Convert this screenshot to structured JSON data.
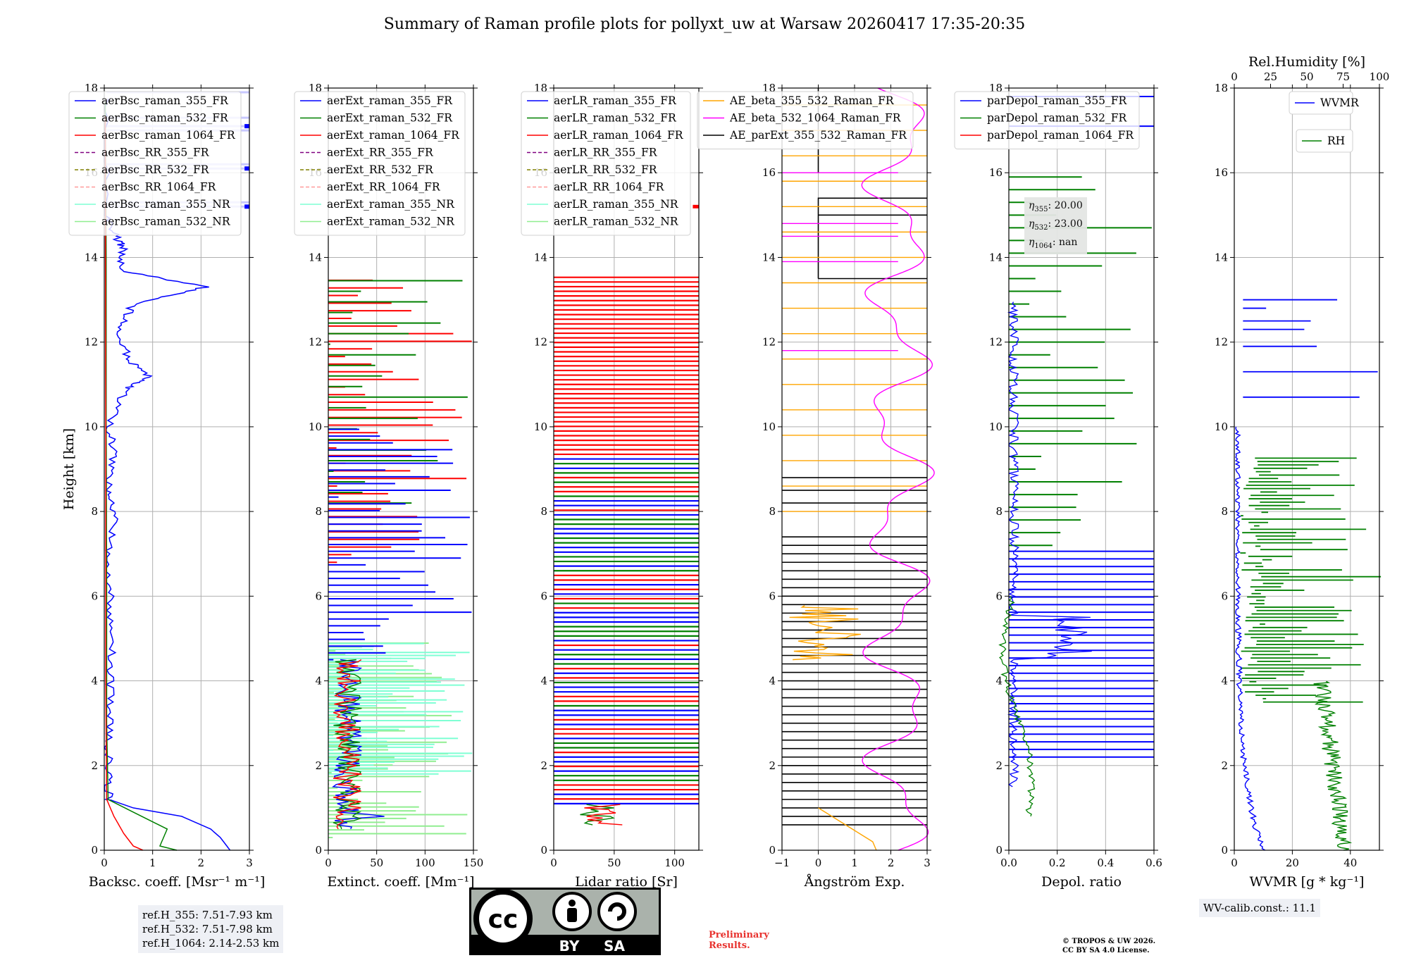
{
  "figure_title": "Summary of Raman profile plots for pollyxt_uw at Warsaw 20260417 17:35-20:35",
  "chart_data": [
    {
      "type": "line",
      "name": "backscatter",
      "xlabel": "Backsc. coeff. [Msr⁻¹ m⁻¹]",
      "ylabel": "Height [km]",
      "xlim": [
        0,
        3
      ],
      "ylim": [
        0,
        18
      ],
      "xticks": [
        "0",
        "1",
        "2",
        "3"
      ],
      "yticks": [
        "0",
        "2",
        "4",
        "6",
        "8",
        "10",
        "12",
        "14",
        "16",
        "18"
      ],
      "legend": [
        "aerBsc_raman_355_FR",
        "aerBsc_raman_532_FR",
        "aerBsc_raman_1064_FR",
        "aerBsc_RR_355_FR",
        "aerBsc_RR_532_FR",
        "aerBsc_RR_1064_FR",
        "aerBsc_raman_355_NR",
        "aerBsc_raman_532_NR"
      ],
      "series": [
        {
          "name": "aerBsc_raman_355_FR",
          "color": "#0000ff",
          "points": [
            [
              2.6,
              0
            ],
            [
              2.4,
              0.3
            ],
            [
              2.2,
              0.5
            ],
            [
              1.6,
              0.8
            ],
            [
              0.6,
              1.0
            ],
            [
              0.1,
              1.2
            ],
            [
              0.08,
              2
            ],
            [
              0.1,
              3
            ],
            [
              0.12,
              4
            ],
            [
              0.15,
              5
            ],
            [
              0.12,
              6
            ],
            [
              0.1,
              7
            ],
            [
              0.2,
              7.9
            ],
            [
              0.1,
              8.5
            ],
            [
              0.2,
              9.3
            ],
            [
              0.1,
              10
            ],
            [
              0.45,
              10.9
            ],
            [
              0.9,
              11.2
            ],
            [
              0.5,
              11.6
            ],
            [
              0.3,
              12.3
            ],
            [
              0.6,
              12.9
            ],
            [
              2.1,
              13.3
            ],
            [
              0.3,
              13.7
            ],
            [
              0.4,
              14.2
            ],
            [
              0.25,
              14.5
            ],
            [
              0.05,
              15
            ],
            [
              0.02,
              18
            ]
          ]
        },
        {
          "name": "aerBsc_raman_532_FR",
          "color": "#008000",
          "points": [
            [
              1.5,
              0
            ],
            [
              1.15,
              0.1
            ],
            [
              1.3,
              0.5
            ],
            [
              0.6,
              0.9
            ],
            [
              0.08,
              1.2
            ],
            [
              0.05,
              3
            ],
            [
              0.05,
              6
            ],
            [
              0.04,
              10
            ],
            [
              0.04,
              14
            ],
            [
              0.02,
              18
            ]
          ]
        },
        {
          "name": "aerBsc_raman_1064_FR",
          "color": "#ff0000",
          "points": [
            [
              0.8,
              0
            ],
            [
              0.6,
              0.1
            ],
            [
              0.4,
              0.4
            ],
            [
              0.2,
              0.8
            ],
            [
              0.05,
              1.2
            ],
            [
              0.03,
              4
            ],
            [
              0.03,
              10
            ],
            [
              0.02,
              18
            ]
          ]
        }
      ]
    },
    {
      "type": "line",
      "name": "extinction",
      "xlabel": "Extinct. coeff. [Mm⁻¹]",
      "xlim": [
        0,
        150
      ],
      "ylim": [
        0,
        18
      ],
      "xticks": [
        "0",
        "50",
        "100",
        "150"
      ],
      "yticks": [
        "0",
        "2",
        "4",
        "6",
        "8",
        "10",
        "12",
        "14",
        "16",
        "18"
      ],
      "legend": [
        "aerExt_raman_355_FR",
        "aerExt_raman_532_FR",
        "aerExt_raman_1064_FR",
        "aerExt_RR_355_FR",
        "aerExt_RR_532_FR",
        "aerExt_RR_1064_FR",
        "aerExt_raman_355_NR",
        "aerExt_raman_532_NR"
      ]
    },
    {
      "type": "line",
      "name": "lidar_ratio",
      "xlabel": "Lidar ratio [Sr]",
      "xlim": [
        0,
        120
      ],
      "ylim": [
        0,
        18
      ],
      "xticks": [
        "0",
        "50",
        "100"
      ],
      "yticks": [
        "0",
        "2",
        "4",
        "6",
        "8",
        "10",
        "12",
        "14",
        "16",
        "18"
      ],
      "legend": [
        "aerLR_raman_355_FR",
        "aerLR_raman_532_FR",
        "aerLR_raman_1064_FR",
        "aerLR_RR_355_FR",
        "aerLR_RR_532_FR",
        "aerLR_RR_1064_FR",
        "aerLR_raman_355_NR",
        "aerLR_raman_532_NR"
      ]
    },
    {
      "type": "line",
      "name": "angstrom",
      "xlabel": "Ångström Exp.",
      "xlim": [
        -1,
        3
      ],
      "ylim": [
        0,
        18
      ],
      "xticks": [
        "−1",
        "0",
        "1",
        "2",
        "3"
      ],
      "yticks": [
        "0",
        "2",
        "4",
        "6",
        "8",
        "10",
        "12",
        "14",
        "16",
        "18"
      ],
      "legend": [
        "AE_beta_355_532_Raman_FR",
        "AE_beta_532_1064_Raman_FR",
        "AE_parExt_355_532_Raman_FR"
      ]
    },
    {
      "type": "line",
      "name": "depolarization",
      "xlabel": "Depol. ratio",
      "xlim": [
        0,
        0.6
      ],
      "ylim": [
        0,
        18
      ],
      "xticks": [
        "0.0",
        "0.2",
        "0.4",
        "0.6"
      ],
      "yticks": [
        "0",
        "2",
        "4",
        "6",
        "8",
        "10",
        "12",
        "14",
        "16",
        "18"
      ],
      "legend": [
        "parDepol_raman_355_FR",
        "parDepol_raman_532_FR",
        "parDepol_raman_1064_FR"
      ],
      "annotation": {
        "eta355": ": 20.00",
        "eta532": ": 23.00",
        "eta1064": ": nan"
      }
    },
    {
      "type": "line",
      "name": "water_vapor",
      "xlabel": "WVMR [g * kg⁻¹]",
      "top_xlabel": "Rel.Humidity [%]",
      "xlim": [
        0,
        50
      ],
      "top_xlim": [
        0,
        100
      ],
      "ylim": [
        0,
        18
      ],
      "xticks": [
        "0",
        "20",
        "40"
      ],
      "top_xticks": [
        "0",
        "25",
        "50",
        "75",
        "100"
      ],
      "yticks": [
        "0",
        "2",
        "4",
        "6",
        "8",
        "10",
        "12",
        "14",
        "16",
        "18"
      ],
      "legend": [
        "WVMR",
        "RH"
      ]
    }
  ],
  "ref_heights": {
    "h355": "ref.H_355: 7.51-7.93 km",
    "h532": "ref.H_532: 7.51-7.98 km",
    "h1064": "ref.H_1064: 2.14-2.53 km"
  },
  "wv_calib": "WV-calib.const.: 11.1",
  "license_badge": {
    "by": "BY",
    "sa": "SA",
    "cc": "cc"
  },
  "preliminary": {
    "line1": "Preliminary",
    "line2": "Results."
  },
  "copyright": {
    "line1": "© TROPOS & UW 2026.",
    "line2": "CC BY SA 4.0 License."
  },
  "colors": {
    "c355": "#0000ff",
    "c532": "#008000",
    "c1064": "#ff0000",
    "rr355": "#800080",
    "rr532": "#808000",
    "rr1064": "#ff9999",
    "nr355": "#7fffd4",
    "nr532": "#90ee90",
    "ae1": "#ffa500",
    "ae2": "#ff00ff",
    "ae3": "#000000"
  }
}
